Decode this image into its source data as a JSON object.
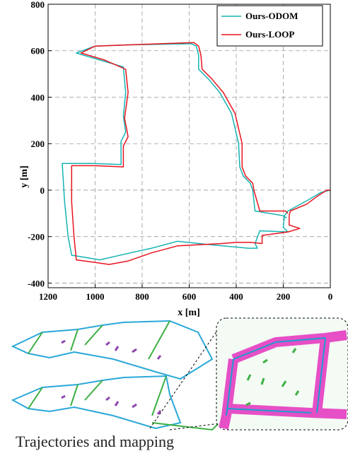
{
  "chart_data": {
    "type": "line",
    "title": "",
    "xlabel": "x [m]",
    "ylabel": "y [m]",
    "xlim": [
      1200,
      0
    ],
    "ylim": [
      -420,
      800
    ],
    "x_axis_reversed": true,
    "xticks": [
      1200,
      1000,
      800,
      600,
      400,
      200,
      0
    ],
    "yticks": [
      800,
      600,
      400,
      200,
      0,
      -200,
      -400
    ],
    "grid": true,
    "legend_position": "top-right",
    "series": [
      {
        "name": "Ours-ODOM",
        "color": "#16b3b3",
        "points": [
          [
            0,
            0
          ],
          [
            40,
            -10
          ],
          [
            90,
            -40
          ],
          [
            180,
            -90
          ],
          [
            195,
            -110
          ],
          [
            200,
            -160
          ],
          [
            180,
            -180
          ],
          [
            300,
            -175
          ],
          [
            320,
            -230
          ],
          [
            310,
            -250
          ],
          [
            350,
            -250
          ],
          [
            400,
            -245
          ],
          [
            460,
            -240
          ],
          [
            560,
            -230
          ],
          [
            650,
            -220
          ],
          [
            760,
            -250
          ],
          [
            850,
            -270
          ],
          [
            980,
            -300
          ],
          [
            1040,
            -290
          ],
          [
            1100,
            -280
          ],
          [
            1115,
            -200
          ],
          [
            1130,
            -50
          ],
          [
            1140,
            115
          ],
          [
            1010,
            115
          ],
          [
            890,
            110
          ],
          [
            890,
            210
          ],
          [
            870,
            250
          ],
          [
            880,
            320
          ],
          [
            870,
            420
          ],
          [
            880,
            530
          ],
          [
            980,
            560
          ],
          [
            1080,
            590
          ],
          [
            1000,
            620
          ],
          [
            860,
            625
          ],
          [
            590,
            630
          ],
          [
            570,
            620
          ],
          [
            560,
            580
          ],
          [
            560,
            520
          ],
          [
            520,
            480
          ],
          [
            470,
            420
          ],
          [
            420,
            330
          ],
          [
            390,
            200
          ],
          [
            385,
            100
          ],
          [
            370,
            60
          ],
          [
            340,
            30
          ],
          [
            330,
            0
          ],
          [
            320,
            -90
          ],
          [
            200,
            -110
          ],
          [
            185,
            -120
          ]
        ]
      },
      {
        "name": "Ours-LOOP",
        "color": "#e8141e",
        "points": [
          [
            0,
            0
          ],
          [
            15,
            0
          ],
          [
            60,
            -30
          ],
          [
            100,
            -60
          ],
          [
            170,
            -90
          ],
          [
            175,
            -110
          ],
          [
            175,
            -150
          ],
          [
            130,
            -165
          ],
          [
            180,
            -180
          ],
          [
            290,
            -195
          ],
          [
            290,
            -215
          ],
          [
            290,
            -230
          ],
          [
            340,
            -225
          ],
          [
            400,
            -225
          ],
          [
            460,
            -230
          ],
          [
            560,
            -235
          ],
          [
            650,
            -240
          ],
          [
            760,
            -270
          ],
          [
            860,
            -305
          ],
          [
            940,
            -320
          ],
          [
            1010,
            -310
          ],
          [
            1080,
            -300
          ],
          [
            1090,
            -200
          ],
          [
            1100,
            -50
          ],
          [
            1100,
            100
          ],
          [
            1100,
            105
          ],
          [
            1000,
            105
          ],
          [
            880,
            100
          ],
          [
            880,
            190
          ],
          [
            860,
            230
          ],
          [
            875,
            310
          ],
          [
            860,
            420
          ],
          [
            870,
            520
          ],
          [
            960,
            560
          ],
          [
            1060,
            590
          ],
          [
            1000,
            620
          ],
          [
            860,
            625
          ],
          [
            580,
            635
          ],
          [
            560,
            620
          ],
          [
            550,
            580
          ],
          [
            545,
            520
          ],
          [
            505,
            480
          ],
          [
            455,
            420
          ],
          [
            405,
            330
          ],
          [
            375,
            200
          ],
          [
            375,
            100
          ],
          [
            360,
            60
          ],
          [
            330,
            30
          ],
          [
            325,
            0
          ],
          [
            300,
            -90
          ],
          [
            190,
            -90
          ],
          [
            180,
            -100
          ]
        ]
      }
    ]
  },
  "caption_text": "Trajectories and mapping"
}
